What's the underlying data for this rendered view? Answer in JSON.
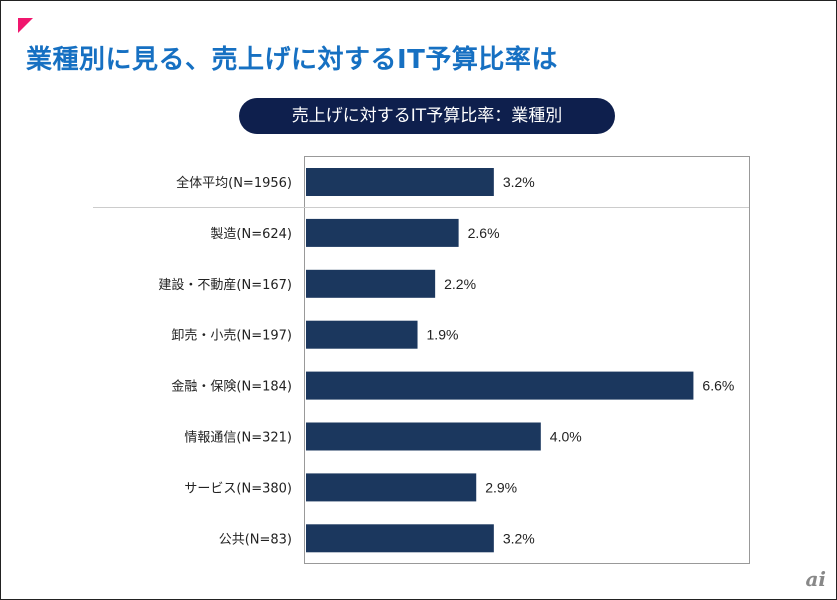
{
  "title": "業種別に見る、売上げに対するIT予算比率は",
  "chart_data": {
    "type": "bar",
    "orientation": "horizontal",
    "title": "売上げに対するIT予算比率：業種別",
    "categories": [
      "全体平均(N=1956)",
      "製造(N=624)",
      "建設・不動産(N=167)",
      "卸売・小売(N=197)",
      "金融・保険(N=184)",
      "情報通信(N=321)",
      "サービス(N=380)",
      "公共(N=83)"
    ],
    "values": [
      3.2,
      2.6,
      2.2,
      1.9,
      6.6,
      4.0,
      2.9,
      3.2
    ],
    "labels": [
      "3.2%",
      "2.6%",
      "2.2%",
      "1.9%",
      "6.6%",
      "4.0%",
      "2.9%",
      "3.2%"
    ],
    "unit": "%",
    "bar_color": "#1b375e",
    "grid": false
  },
  "logo": "ai",
  "colors": {
    "title": "#1670c2",
    "accent": "#f0166e",
    "pill": "#0e1f4d"
  }
}
